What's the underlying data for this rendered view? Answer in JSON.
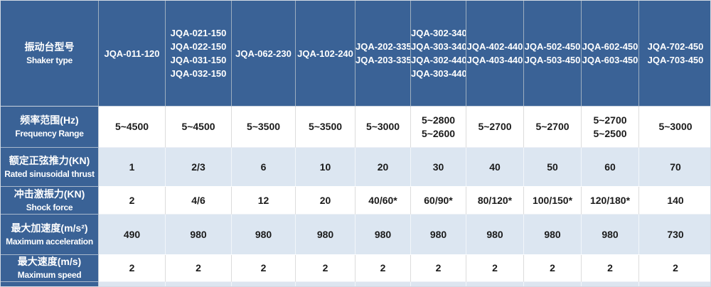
{
  "table": {
    "header": {
      "label_cn": "振动台型号",
      "label_en": "Shaker type",
      "columns": [
        [
          "JQA-011-120"
        ],
        [
          "JQA-021-150",
          "JQA-022-150",
          "JQA-031-150",
          "JQA-032-150"
        ],
        [
          "JQA-062-230"
        ],
        [
          "JQA-102-240"
        ],
        [
          "JQA-202-335",
          "JQA-203-335"
        ],
        [
          "JQA-302-340",
          "JQA-303-340",
          "JQA-302-440",
          "JQA-303-440"
        ],
        [
          "JQA-402-440",
          "JQA-403-440"
        ],
        [
          "JQA-502-450",
          "JQA-503-450"
        ],
        [
          "JQA-602-450",
          "JQA-603-450"
        ],
        [
          "JQA-702-450",
          "JQA-703-450"
        ]
      ]
    },
    "rows": [
      {
        "label_cn": "频率范围(Hz)",
        "label_en": "Frequency Range",
        "values": [
          [
            "5~4500"
          ],
          [
            "5~4500"
          ],
          [
            "5~3500"
          ],
          [
            "5~3500"
          ],
          [
            "5~3000"
          ],
          [
            "5~2800",
            "5~2600"
          ],
          [
            "5~2700"
          ],
          [
            "5~2700"
          ],
          [
            "5~2700",
            "5~2500"
          ],
          [
            "5~3000"
          ]
        ]
      },
      {
        "label_cn": "额定正弦推力(KN)",
        "label_en": "Rated sinusoidal thrust",
        "values": [
          [
            "1"
          ],
          [
            "2/3"
          ],
          [
            "6"
          ],
          [
            "10"
          ],
          [
            "20"
          ],
          [
            "30"
          ],
          [
            "40"
          ],
          [
            "50"
          ],
          [
            "60"
          ],
          [
            "70"
          ]
        ]
      },
      {
        "label_cn": "冲击激振力(KN)",
        "label_en": "Shock force",
        "values": [
          [
            "2"
          ],
          [
            "4/6"
          ],
          [
            "12"
          ],
          [
            "20"
          ],
          [
            "40/60*"
          ],
          [
            "60/90*"
          ],
          [
            "80/120*"
          ],
          [
            "100/150*"
          ],
          [
            "120/180*"
          ],
          [
            "140"
          ]
        ]
      },
      {
        "label_cn": "最大加速度(m/s²)",
        "label_en": "Maximum acceleration",
        "values": [
          [
            "490"
          ],
          [
            "980"
          ],
          [
            "980"
          ],
          [
            "980"
          ],
          [
            "980"
          ],
          [
            "980"
          ],
          [
            "980"
          ],
          [
            "980"
          ],
          [
            "980"
          ],
          [
            "730"
          ]
        ]
      },
      {
        "label_cn": "最大速度(m/s)",
        "label_en": "Maximum speed",
        "values": [
          [
            "2"
          ],
          [
            "2"
          ],
          [
            "2"
          ],
          [
            "2"
          ],
          [
            "2"
          ],
          [
            "2"
          ],
          [
            "2"
          ],
          [
            "2"
          ],
          [
            "2"
          ],
          [
            "2"
          ]
        ]
      }
    ],
    "colors": {
      "header_bg": "#3A6296",
      "header_text": "#FFFFFF",
      "band_row_bg": "#DCE6F1",
      "plain_row_bg": "#FFFFFF",
      "data_text": "#1B1B1B"
    }
  }
}
